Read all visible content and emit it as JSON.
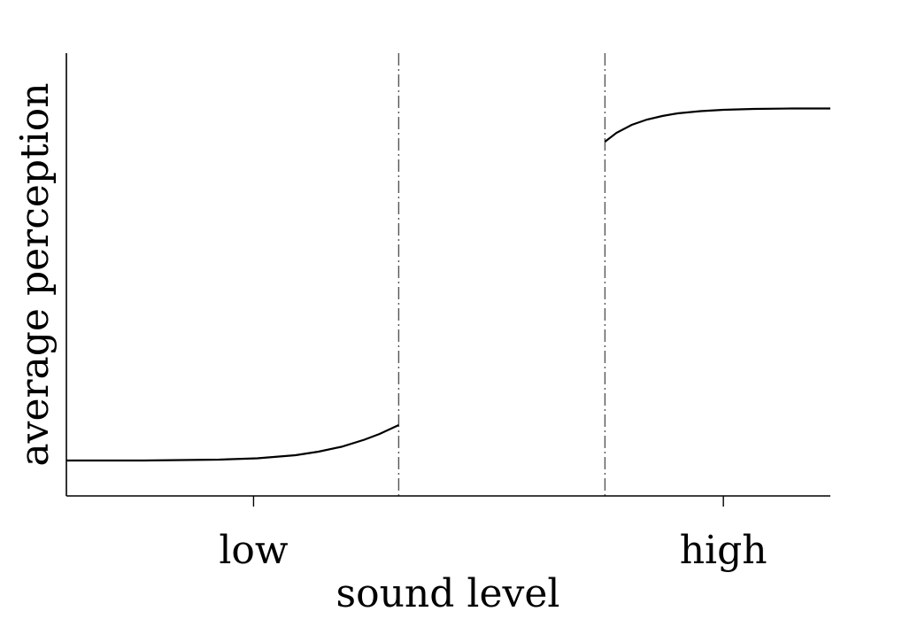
{
  "chart_data": {
    "type": "line",
    "title": "",
    "xlabel": "sound level",
    "ylabel": "average perception",
    "xlim": [
      0,
      1
    ],
    "ylim": [
      0,
      1
    ],
    "categories": [
      "low",
      "high"
    ],
    "category_x": [
      0.245,
      0.86
    ],
    "thresholds": [
      0.435,
      0.705
    ],
    "series": [
      {
        "segment": "below-threshold",
        "x": [
          0.0,
          0.05,
          0.1,
          0.15,
          0.2,
          0.25,
          0.3,
          0.33,
          0.36,
          0.39,
          0.41,
          0.435
        ],
        "y": [
          0.08,
          0.08,
          0.08,
          0.081,
          0.082,
          0.085,
          0.092,
          0.1,
          0.111,
          0.127,
          0.14,
          0.16
        ]
      },
      {
        "segment": "above-threshold",
        "x": [
          0.705,
          0.72,
          0.74,
          0.76,
          0.78,
          0.8,
          0.83,
          0.86,
          0.9,
          0.95,
          1.0
        ],
        "y": [
          0.8,
          0.82,
          0.838,
          0.85,
          0.858,
          0.864,
          0.869,
          0.872,
          0.874,
          0.875,
          0.875
        ]
      }
    ],
    "grid": false,
    "legend": "none"
  }
}
